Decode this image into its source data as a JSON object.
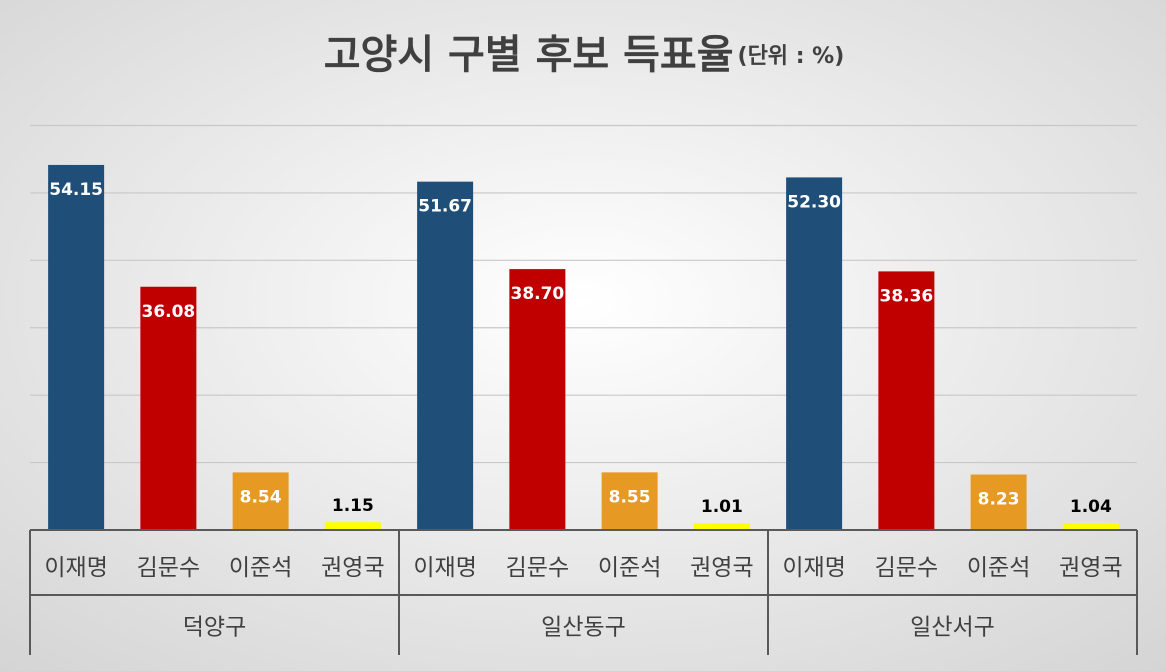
{
  "chart_data": {
    "type": "bar",
    "title": "고양시 구별 후보 득표율",
    "unit_note": "(단위 : %)",
    "categories": [
      "덕양구",
      "일산동구",
      "일산서구"
    ],
    "series": [
      {
        "name": "이재명",
        "color": "#1f4e79",
        "label_color": "#ffffff",
        "values": [
          54.15,
          51.67,
          52.3
        ],
        "value_labels": [
          "54.15",
          "51.67",
          "52.30"
        ]
      },
      {
        "name": "김문수",
        "color": "#c00000",
        "label_color": "#ffffff",
        "values": [
          36.08,
          38.7,
          38.36
        ],
        "value_labels": [
          "36.08",
          "38.70",
          "38.36"
        ]
      },
      {
        "name": "이준석",
        "color": "#e69a23",
        "label_color": "#ffffff",
        "values": [
          8.54,
          8.55,
          8.23
        ],
        "value_labels": [
          "8.54",
          "8.55",
          "8.23"
        ]
      },
      {
        "name": "권영국",
        "color": "#ffff00",
        "label_color": "#000000",
        "values": [
          1.15,
          1.01,
          1.04
        ],
        "value_labels": [
          "1.15",
          "1.01",
          "1.04"
        ]
      }
    ],
    "ylim": [
      0,
      60
    ],
    "yticks": [
      0,
      10,
      20,
      30,
      40,
      50,
      60
    ],
    "show_ytick_labels": false,
    "grid": true
  }
}
